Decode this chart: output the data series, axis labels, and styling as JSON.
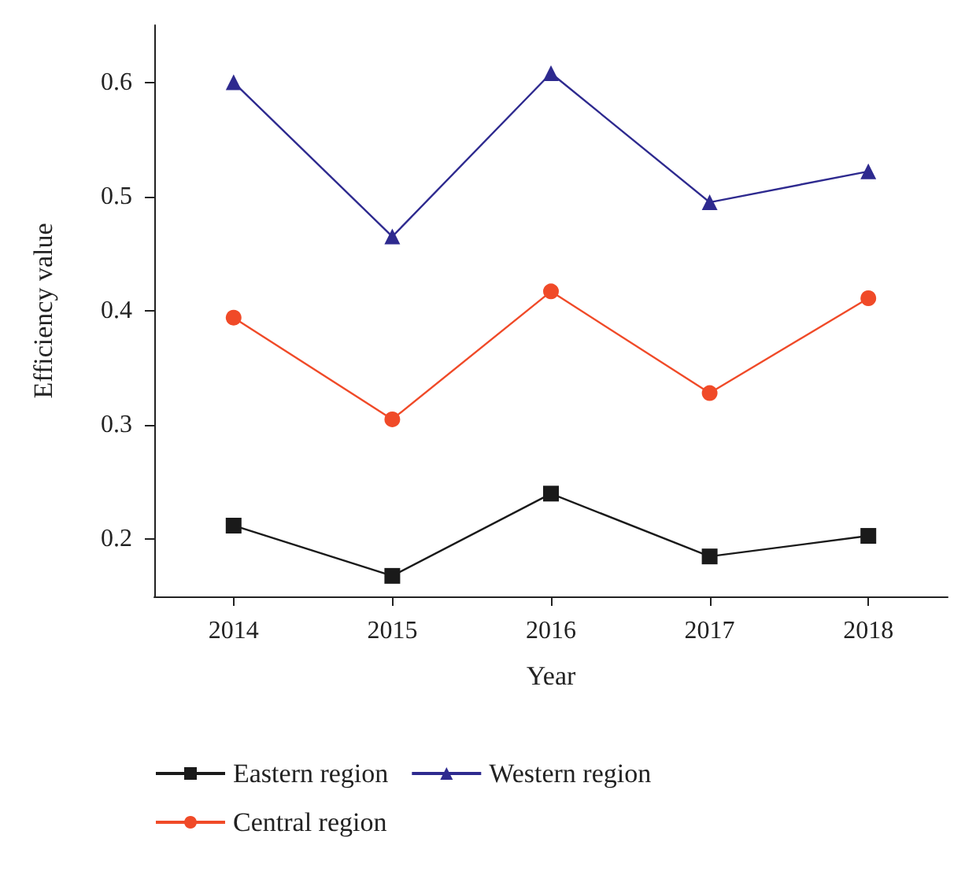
{
  "chart_data": {
    "type": "line",
    "xlabel": "Year",
    "ylabel": "Efficiency value",
    "categories": [
      "2014",
      "2015",
      "2016",
      "2017",
      "2018"
    ],
    "ylim": [
      0.15,
      0.65
    ],
    "yticks": [
      0.2,
      0.3,
      0.4,
      0.5,
      0.6
    ],
    "grid": false,
    "legend": "bottom left",
    "line_style": "solid",
    "series": [
      {
        "name": "Eastern region",
        "color": "#1a1a1a",
        "marker": "square",
        "values": [
          0.212,
          0.168,
          0.24,
          0.185,
          0.203
        ]
      },
      {
        "name": "Central region",
        "color": "#f04a28",
        "marker": "circle",
        "values": [
          0.394,
          0.305,
          0.417,
          0.328,
          0.411
        ]
      },
      {
        "name": "Western region",
        "color": "#2e2a8f",
        "marker": "triangle",
        "values": [
          0.6,
          0.465,
          0.608,
          0.495,
          0.522
        ]
      }
    ]
  }
}
